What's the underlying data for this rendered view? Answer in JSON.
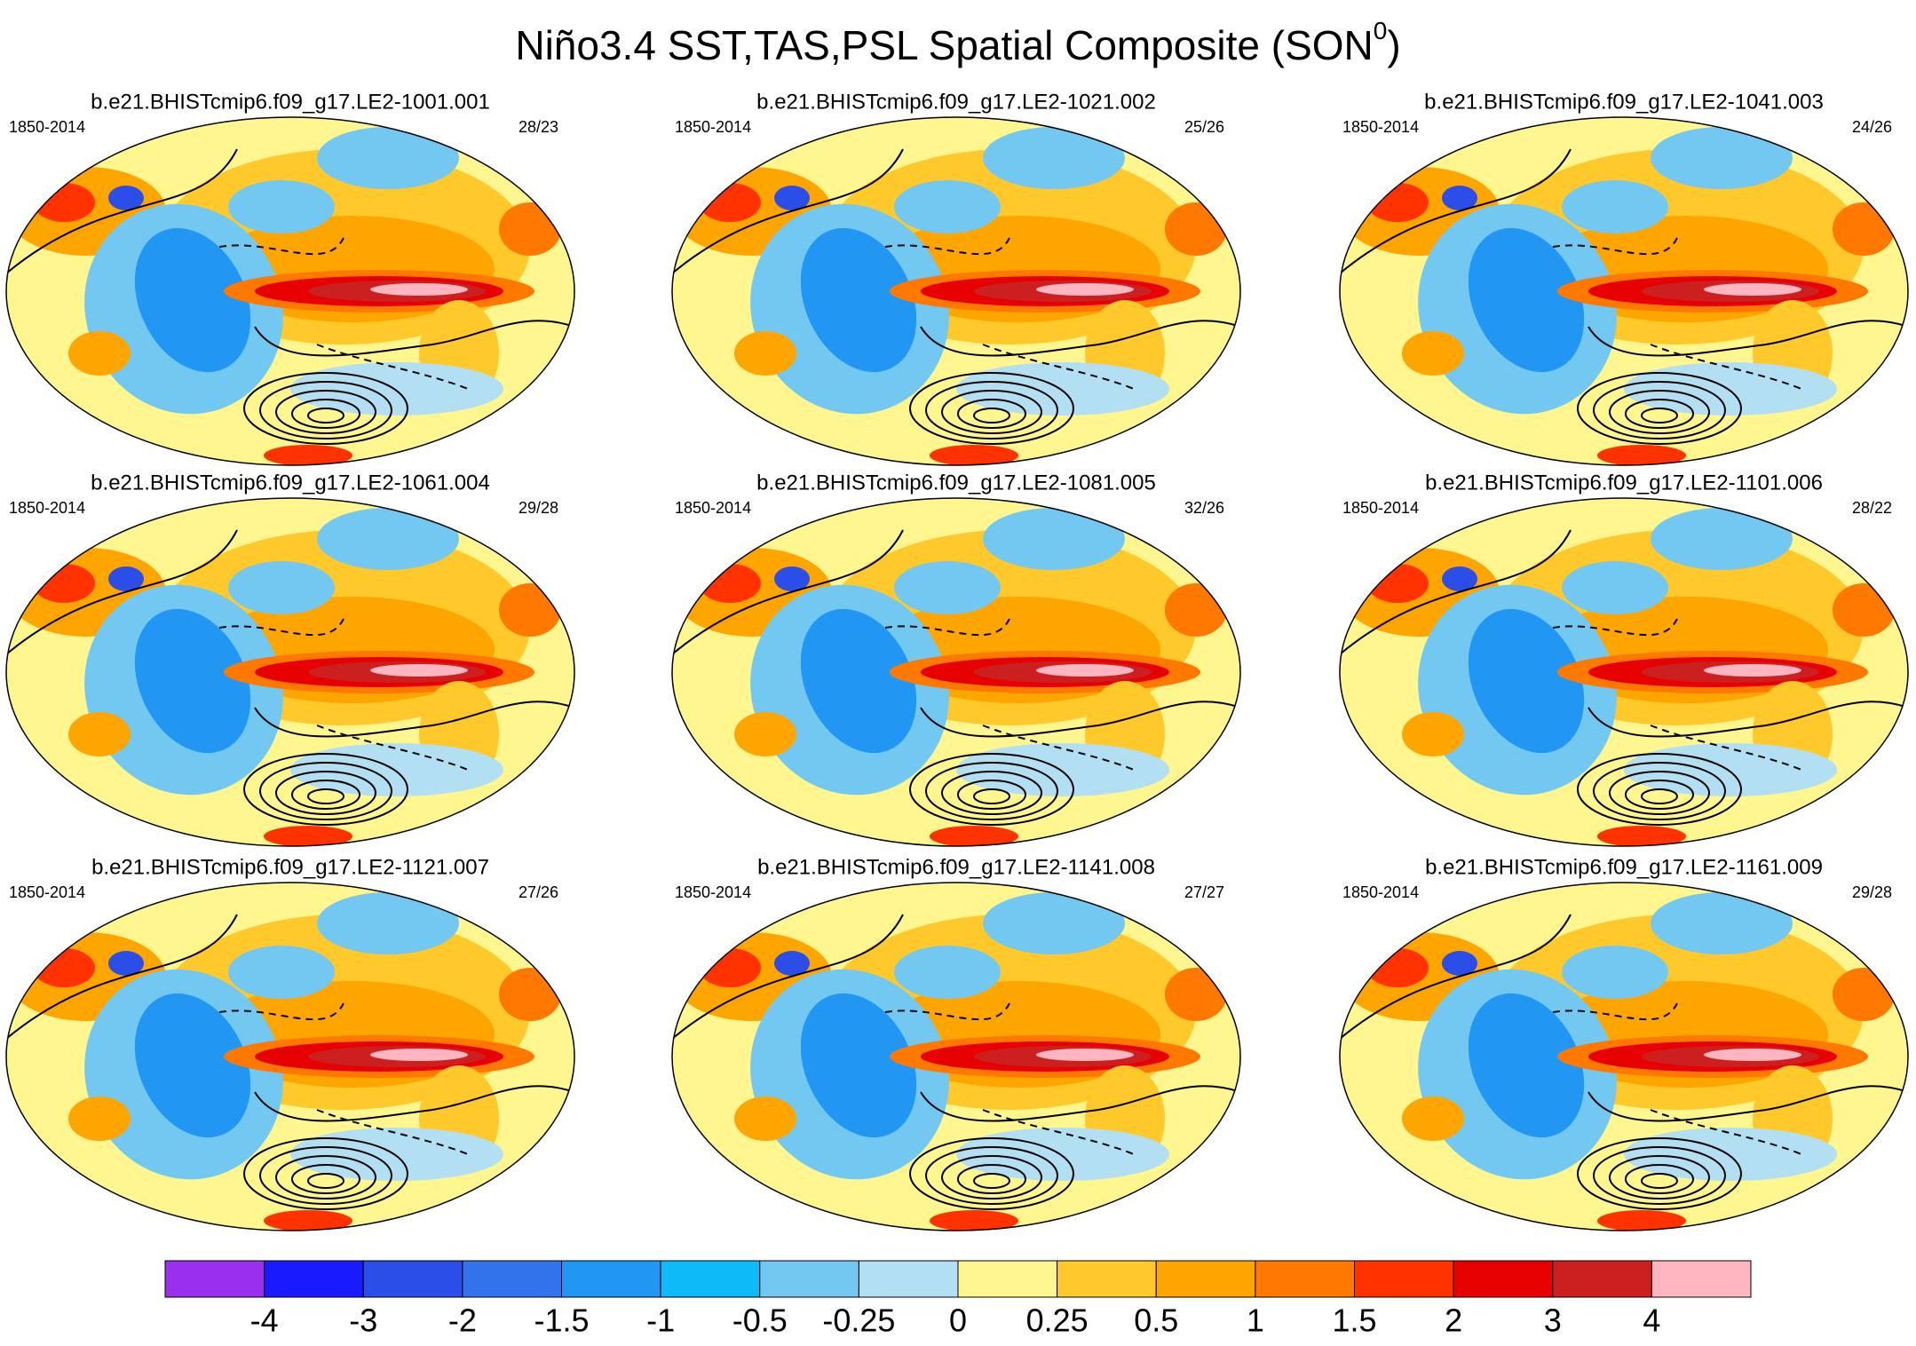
{
  "title": "Niño3.4 SST,TAS,PSL Spatial Composite (SON",
  "title_superscript": "0",
  "title_end": ")",
  "panels": [
    {
      "title": "b.e21.BHISTcmip6.f09_g17.LE2-1001.001",
      "left": "1850-2014",
      "right": "28/23"
    },
    {
      "title": "b.e21.BHISTcmip6.f09_g17.LE2-1021.002",
      "left": "1850-2014",
      "right": "25/26"
    },
    {
      "title": "b.e21.BHISTcmip6.f09_g17.LE2-1041.003",
      "left": "1850-2014",
      "right": "24/26"
    },
    {
      "title": "b.e21.BHISTcmip6.f09_g17.LE2-1061.004",
      "left": "1850-2014",
      "right": "29/28"
    },
    {
      "title": "b.e21.BHISTcmip6.f09_g17.LE2-1081.005",
      "left": "1850-2014",
      "right": "32/26"
    },
    {
      "title": "b.e21.BHISTcmip6.f09_g17.LE2-1101.006",
      "left": "1850-2014",
      "right": "28/22"
    },
    {
      "title": "b.e21.BHISTcmip6.f09_g17.LE2-1121.007",
      "left": "1850-2014",
      "right": "27/26"
    },
    {
      "title": "b.e21.BHISTcmip6.f09_g17.LE2-1141.008",
      "left": "1850-2014",
      "right": "27/27"
    },
    {
      "title": "b.e21.BHISTcmip6.f09_g17.LE2-1161.009",
      "left": "1850-2014",
      "right": "29/28"
    }
  ],
  "colorbar": {
    "colors": [
      "#9a30ee",
      "#1a1aff",
      "#2b4de8",
      "#3273ec",
      "#2196f3",
      "#0fbaf8",
      "#73c8f2",
      "#b2dff2",
      "#fff68f",
      "#ffc92b",
      "#ffa500",
      "#ff7800",
      "#ff3200",
      "#e60000",
      "#cc1f1f",
      "#ffb6c1"
    ],
    "labels": [
      "-4",
      "-3",
      "-2",
      "-1.5",
      "-1",
      "-0.5",
      "-0.25",
      "0",
      "0.25",
      "0.5",
      "1",
      "1.5",
      "2",
      "3",
      "4"
    ]
  }
}
